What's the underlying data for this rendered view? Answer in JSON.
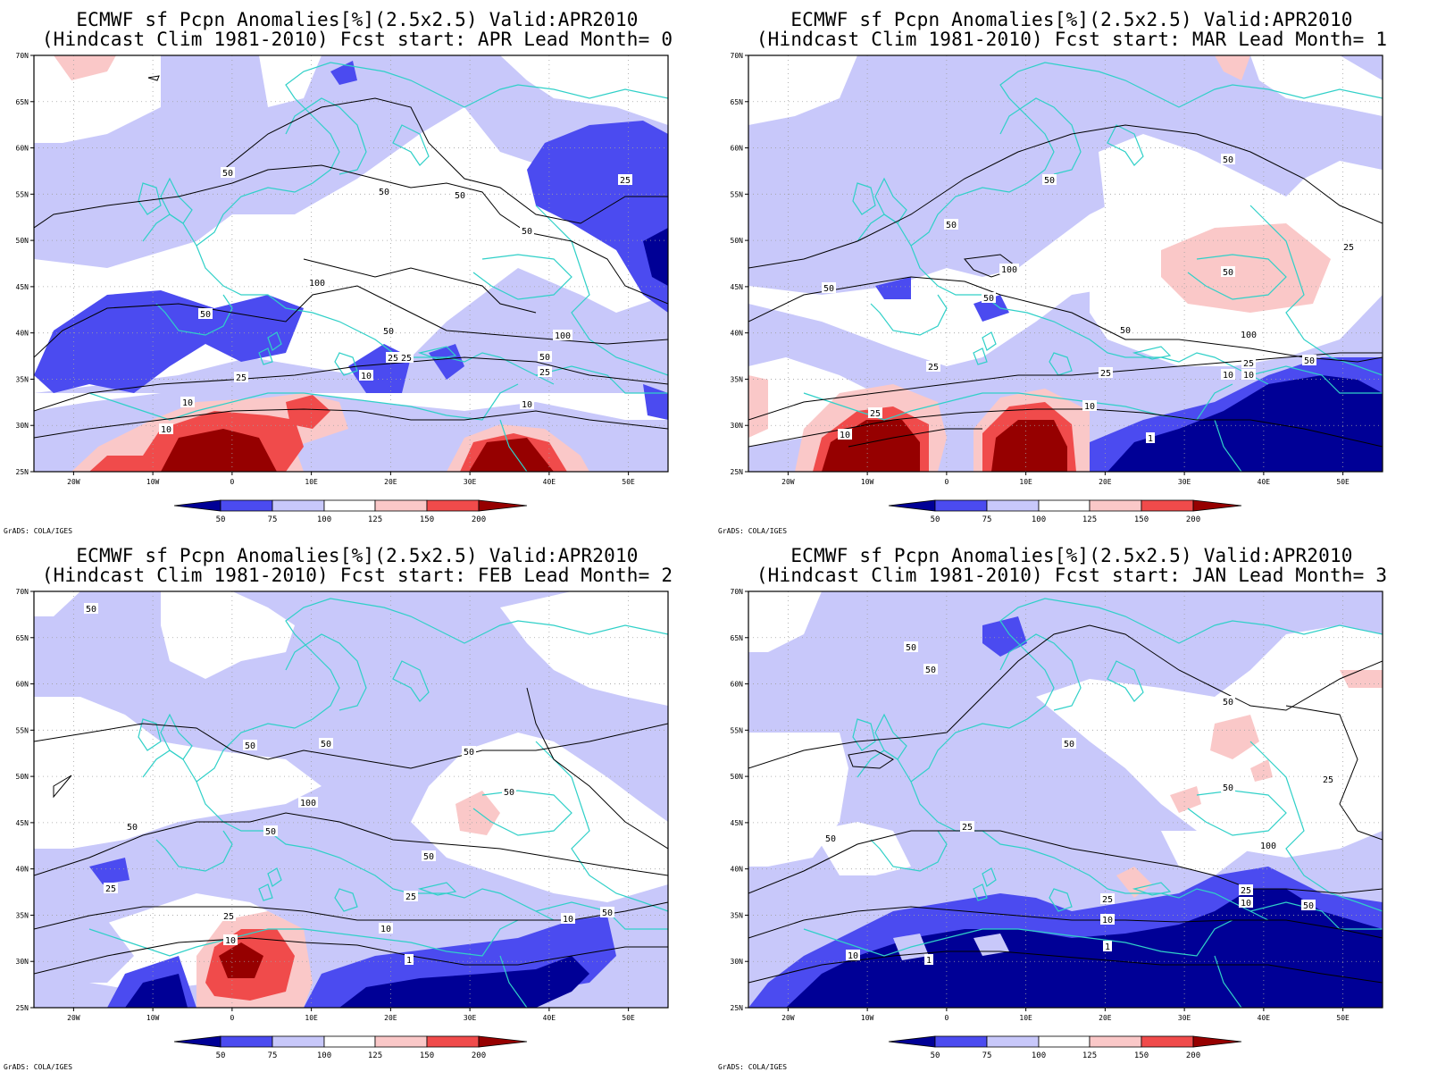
{
  "credit": "GrADS: COLA/IGES",
  "colors": {
    "lt50": "#000096",
    "50_75": "#4b4bf0",
    "75_100": "#c8c8fa",
    "100_125": "#ffffff",
    "125_150": "#fac8c8",
    "150_200": "#f04b4b",
    "gt200": "#960000",
    "coast": "#30d0c8",
    "contour": "#000000",
    "grid": "#a0a0a0"
  },
  "colorbar": {
    "ticks": [
      "50",
      "75",
      "100",
      "125",
      "150",
      "200"
    ]
  },
  "axes": {
    "lat_ticks": [
      "70N",
      "65N",
      "60N",
      "55N",
      "50N",
      "45N",
      "40N",
      "35N",
      "30N",
      "25N"
    ],
    "lon_ticks": [
      "20W",
      "10W",
      "0",
      "10E",
      "20E",
      "30E",
      "40E",
      "50E"
    ],
    "lon_range": [
      -25,
      55
    ],
    "lat_range": [
      25,
      70
    ]
  },
  "panels": [
    {
      "title1": "ECMWF sf Pcpn Anomalies[%](2.5x2.5) Valid:APR2010",
      "title2": "(Hindcast Clim 1981-2010) Fcst start: APR  Lead Month= 0",
      "contour_labels": [
        "50",
        "50",
        "50",
        "25",
        "50",
        "100",
        "50",
        "50",
        "25",
        "10",
        "25",
        "10",
        "50",
        "25",
        "100",
        "10",
        "25",
        "10"
      ]
    },
    {
      "title1": "ECMWF sf Pcpn Anomalies[%](2.5x2.5) Valid:APR2010",
      "title2": "(Hindcast Clim 1981-2010) Fcst start: MAR  Lead Month= 1",
      "contour_labels": [
        "50",
        "50",
        "50",
        "25",
        "50",
        "100",
        "50",
        "50",
        "50",
        "25",
        "25",
        "10",
        "100",
        "25",
        "10",
        "10",
        "1",
        "50",
        "25",
        "10"
      ]
    },
    {
      "title1": "ECMWF sf Pcpn Anomalies[%](2.5x2.5) Valid:APR2010",
      "title2": "(Hindcast Clim 1981-2010) Fcst start: FEB  Lead Month= 2",
      "contour_labels": [
        "50",
        "50",
        "50",
        "50",
        "50",
        "100",
        "50",
        "50",
        "25",
        "25",
        "10",
        "25",
        "50",
        "10",
        "10",
        "1",
        "50"
      ]
    },
    {
      "title1": "ECMWF sf Pcpn Anomalies[%](2.5x2.5) Valid:APR2010",
      "title2": "(Hindcast Clim 1981-2010) Fcst start: JAN  Lead Month= 3",
      "contour_labels": [
        "50",
        "50",
        "50",
        "50",
        "25",
        "50",
        "50",
        "25",
        "10",
        "1",
        "1",
        "50",
        "100",
        "10",
        "25",
        "25",
        "50",
        "10"
      ]
    }
  ]
}
